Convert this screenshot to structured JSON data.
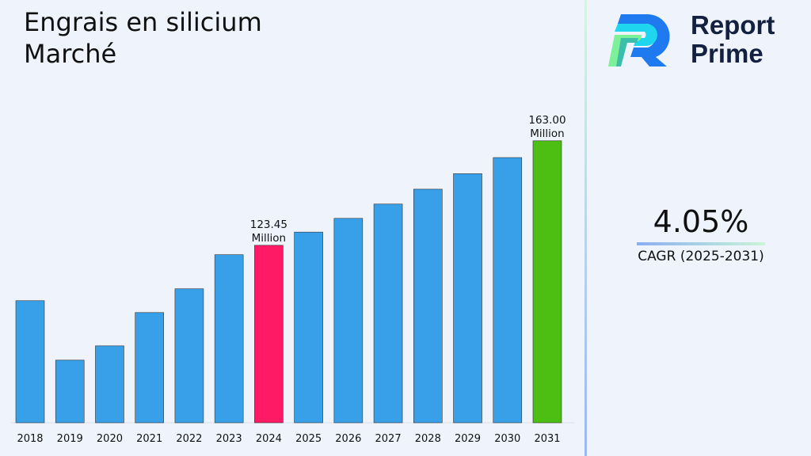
{
  "title_lines": [
    "Engrais en silicium",
    "Marché"
  ],
  "logo": {
    "line1": "Report",
    "line2": "Prime"
  },
  "cagr": {
    "value": "4.05%",
    "label": "CAGR (2025-2031)"
  },
  "colors": {
    "bar": "#38a0e8",
    "highlight_2024": "#ff1a66",
    "highlight_2031": "#4cbf12"
  },
  "chart_data": {
    "type": "bar",
    "categories": [
      "2018",
      "2019",
      "2020",
      "2021",
      "2022",
      "2023",
      "2024",
      "2025",
      "2026",
      "2027",
      "2028",
      "2029",
      "2030",
      "2031"
    ],
    "values": [
      102.5,
      80.0,
      85.4,
      98.0,
      107.0,
      119.9,
      123.45,
      128.45,
      133.65,
      139.06,
      144.69,
      150.55,
      156.65,
      163.0
    ],
    "data_labels": {
      "2024": [
        "123.45",
        "Million"
      ],
      "2031": [
        "163.00",
        "Million"
      ]
    },
    "ylim": [
      56.3,
      170
    ],
    "grid": false
  }
}
